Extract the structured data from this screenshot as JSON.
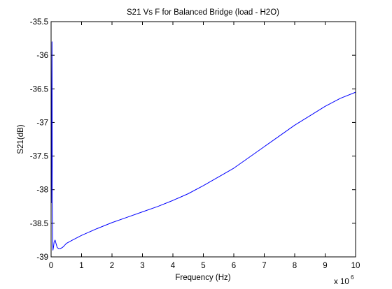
{
  "chart_data": {
    "type": "line",
    "title": "S21 Vs F for Balanced Bridge (load - H2O)",
    "xlabel": "Frequency (Hz)",
    "ylabel": "S21(dB)",
    "x_multiplier_base": "x 10",
    "x_multiplier_exponent": "6",
    "x_scale": 1000000,
    "xlim": [
      0,
      10000000
    ],
    "ylim": [
      -39,
      -35.5
    ],
    "x_ticks": [
      0,
      1000000,
      2000000,
      3000000,
      4000000,
      5000000,
      6000000,
      7000000,
      8000000,
      9000000,
      10000000
    ],
    "x_tick_labels": [
      "0",
      "1",
      "2",
      "3",
      "4",
      "5",
      "6",
      "7",
      "8",
      "9",
      "10"
    ],
    "y_ticks": [
      -39,
      -38.5,
      -38,
      -37.5,
      -37,
      -36.5,
      -36,
      -35.5
    ],
    "y_tick_labels": [
      "-39",
      "-38.5",
      "-38",
      "-37.5",
      "-37",
      "-36.5",
      "-36",
      "-35.5"
    ],
    "grid": false,
    "colors": {
      "line": "#0000ff",
      "axes": "#000000",
      "background": "#ffffff"
    },
    "series": [
      {
        "x": [
          10000,
          30000,
          40000,
          60000,
          80000,
          100000,
          130000,
          160000,
          200000,
          250000,
          300000,
          400000,
          500000,
          700000,
          1000000,
          1500000,
          2000000,
          2500000,
          3000000,
          3500000,
          4000000,
          4500000,
          5000000,
          5500000,
          6000000,
          6500000,
          7000000,
          7500000,
          8000000,
          8500000,
          9000000,
          9500000,
          10000000
        ],
        "y": [
          -38.2,
          -35.8,
          -38.2,
          -38.9,
          -38.85,
          -38.78,
          -38.75,
          -38.8,
          -38.86,
          -38.88,
          -38.88,
          -38.85,
          -38.8,
          -38.75,
          -38.68,
          -38.58,
          -38.49,
          -38.41,
          -38.33,
          -38.25,
          -38.16,
          -38.06,
          -37.94,
          -37.81,
          -37.68,
          -37.52,
          -37.36,
          -37.2,
          -37.04,
          -36.9,
          -36.76,
          -36.64,
          -36.55
        ]
      }
    ]
  }
}
